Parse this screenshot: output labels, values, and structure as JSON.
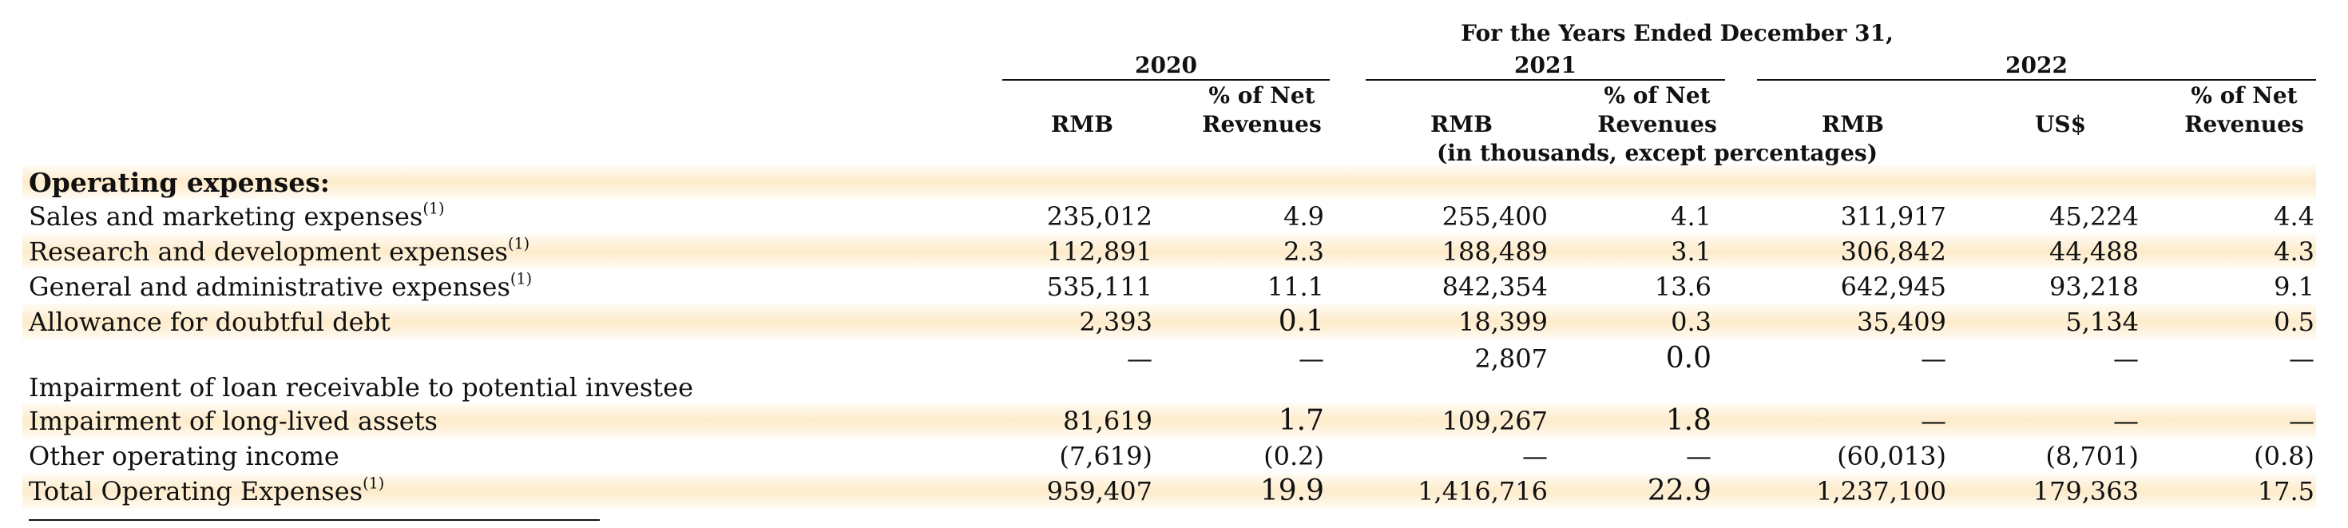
{
  "header": {
    "period_title": "For the Years Ended December 31,",
    "years": [
      "2020",
      "2021",
      "2022"
    ],
    "col_labels": {
      "rmb": "RMB",
      "usd": "US$",
      "pct_line1": "% of Net",
      "pct_line2": "Revenues"
    },
    "units_note": "(in thousands, except percentages)"
  },
  "section": {
    "title": "Operating expenses:"
  },
  "rows": [
    {
      "label": "Sales and marketing expenses",
      "note": "(1)",
      "v": [
        "235,012",
        "4.9",
        "255,400",
        "4.1",
        "311,917",
        "45,224",
        "4.4"
      ]
    },
    {
      "label": "Research and development expenses",
      "note": "(1)",
      "v": [
        "112,891",
        "2.3",
        "188,489",
        "3.1",
        "306,842",
        "44,488",
        "4.3"
      ]
    },
    {
      "label": "General and administrative expenses",
      "note": "(1)",
      "v": [
        "535,111",
        "11.1",
        "842,354",
        "13.6",
        "642,945",
        "93,218",
        "9.1"
      ]
    },
    {
      "label": "Allowance for doubtful debt",
      "note": "",
      "v": [
        "2,393",
        "0.1",
        "18,399",
        "0.3",
        "35,409",
        "5,134",
        "0.5"
      ]
    },
    {
      "label": "Impairment of loan receivable to potential investee",
      "note": "",
      "v": [
        "—",
        "—",
        "2,807",
        "0.0",
        "—",
        "—",
        "—"
      ]
    },
    {
      "label": "Impairment of long-lived assets",
      "note": "",
      "v": [
        "81,619",
        "1.7",
        "109,267",
        "1.8",
        "—",
        "—",
        "—"
      ]
    },
    {
      "label": "Other operating income",
      "note": "",
      "v": [
        "(7,619)",
        "(0.2)",
        "—",
        "—",
        "(60,013)",
        "(8,701)",
        "(0.8)"
      ]
    },
    {
      "label": "Total Operating Expenses",
      "note": "(1)",
      "v": [
        "959,407",
        "19.9",
        "1,416,716",
        "22.9",
        "1,237,100",
        "179,363",
        "17.5"
      ]
    }
  ]
}
